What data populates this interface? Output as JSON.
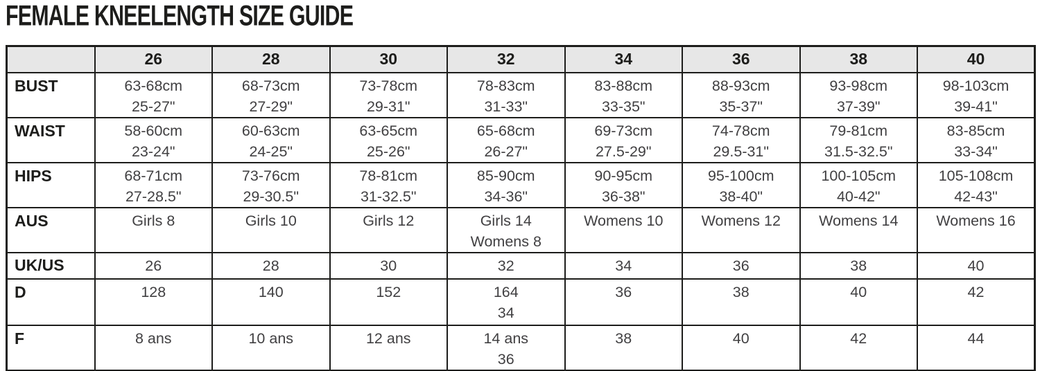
{
  "title": "FEMALE KNEELENGTH SIZE GUIDE",
  "table": {
    "columns": [
      "26",
      "28",
      "30",
      "32",
      "34",
      "36",
      "38",
      "40"
    ],
    "rows": [
      {
        "label": "BUST",
        "cells": [
          [
            "63-68cm",
            "25-27\""
          ],
          [
            "68-73cm",
            "27-29\""
          ],
          [
            "73-78cm",
            "29-31\""
          ],
          [
            "78-83cm",
            "31-33\""
          ],
          [
            "83-88cm",
            "33-35\""
          ],
          [
            "88-93cm",
            "35-37\""
          ],
          [
            "93-98cm",
            "37-39\""
          ],
          [
            "98-103cm",
            "39-41\""
          ]
        ]
      },
      {
        "label": "WAIST",
        "cells": [
          [
            "58-60cm",
            "23-24\""
          ],
          [
            "60-63cm",
            "24-25\""
          ],
          [
            "63-65cm",
            "25-26\""
          ],
          [
            "65-68cm",
            "26-27\""
          ],
          [
            "69-73cm",
            "27.5-29\""
          ],
          [
            "74-78cm",
            "29.5-31\""
          ],
          [
            "79-81cm",
            "31.5-32.5\""
          ],
          [
            "83-85cm",
            "33-34\""
          ]
        ]
      },
      {
        "label": "HIPS",
        "cells": [
          [
            "68-71cm",
            "27-28.5\""
          ],
          [
            "73-76cm",
            "29-30.5\""
          ],
          [
            "78-81cm",
            "31-32.5\""
          ],
          [
            "85-90cm",
            "34-36\""
          ],
          [
            "90-95cm",
            "36-38\""
          ],
          [
            "95-100cm",
            "38-40\""
          ],
          [
            "100-105cm",
            "40-42\""
          ],
          [
            "105-108cm",
            "42-43\""
          ]
        ]
      },
      {
        "label": "AUS",
        "cells": [
          [
            "Girls 8"
          ],
          [
            "Girls 10"
          ],
          [
            "Girls 12"
          ],
          [
            "Girls 14",
            "Womens 8"
          ],
          [
            "Womens 10"
          ],
          [
            "Womens 12"
          ],
          [
            "Womens 14"
          ],
          [
            "Womens 16"
          ]
        ]
      },
      {
        "label": "UK/US",
        "cells": [
          [
            "26"
          ],
          [
            "28"
          ],
          [
            "30"
          ],
          [
            "32"
          ],
          [
            "34"
          ],
          [
            "36"
          ],
          [
            "38"
          ],
          [
            "40"
          ]
        ]
      },
      {
        "label": "D",
        "cells": [
          [
            "128"
          ],
          [
            "140"
          ],
          [
            "152"
          ],
          [
            "164",
            "34"
          ],
          [
            "36"
          ],
          [
            "38"
          ],
          [
            "40"
          ],
          [
            "42"
          ]
        ]
      },
      {
        "label": "F",
        "cells": [
          [
            "8 ans"
          ],
          [
            "10 ans"
          ],
          [
            "12 ans"
          ],
          [
            "14 ans",
            "36"
          ],
          [
            "38"
          ],
          [
            "40"
          ],
          [
            "42"
          ],
          [
            "44"
          ]
        ]
      }
    ]
  }
}
